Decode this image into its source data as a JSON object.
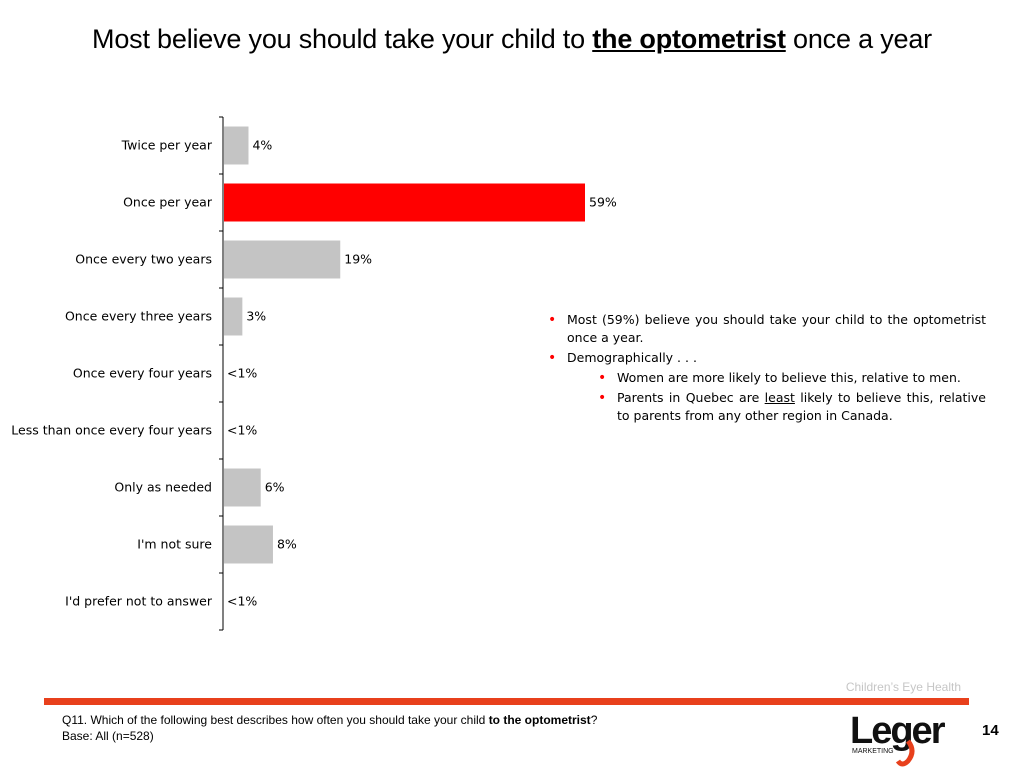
{
  "title": {
    "prefix": "Most believe you should take your child to ",
    "emphasis": "the optometrist",
    "suffix": " once a year"
  },
  "chart_data": {
    "type": "bar",
    "orientation": "horizontal",
    "categories": [
      "Twice per year",
      "Once per year",
      "Once every two years",
      "Once every three years",
      "Once every four years",
      "Less than once every four years",
      "Only as needed",
      "I'm not sure",
      "I'd prefer not to answer"
    ],
    "values": [
      4,
      59,
      19,
      3,
      0.5,
      0.5,
      6,
      8,
      0.5
    ],
    "labels": [
      "4%",
      "59%",
      "19%",
      "3%",
      "<1%",
      "<1%",
      "6%",
      "8%",
      "<1%"
    ],
    "highlight_index": 1,
    "colors": {
      "default": "#c4c4c4",
      "highlight": "#ff0000"
    },
    "xlim": [
      0,
      59
    ]
  },
  "bullets": {
    "b1": "Most (59%) believe you should take your child to the optometrist once a year.",
    "b2": "Demographically . . .",
    "b3": "Women are more likely to believe this, relative to men.",
    "b4_pre": "Parents in Quebec are ",
    "b4_ul": "least",
    "b4_post": " likely to believe this, relative to parents from any other region in Canada."
  },
  "footer": {
    "study": "Children’s Eye Health",
    "question_pre": "Q11. Which of the following best describes how often you should take your child ",
    "question_bold": "to the optometrist",
    "question_post": "?",
    "base": "Base: All (n=528)",
    "page": "14",
    "logo_text": "Leger",
    "logo_sub": "MARKETING",
    "accent": "#e8401c"
  }
}
